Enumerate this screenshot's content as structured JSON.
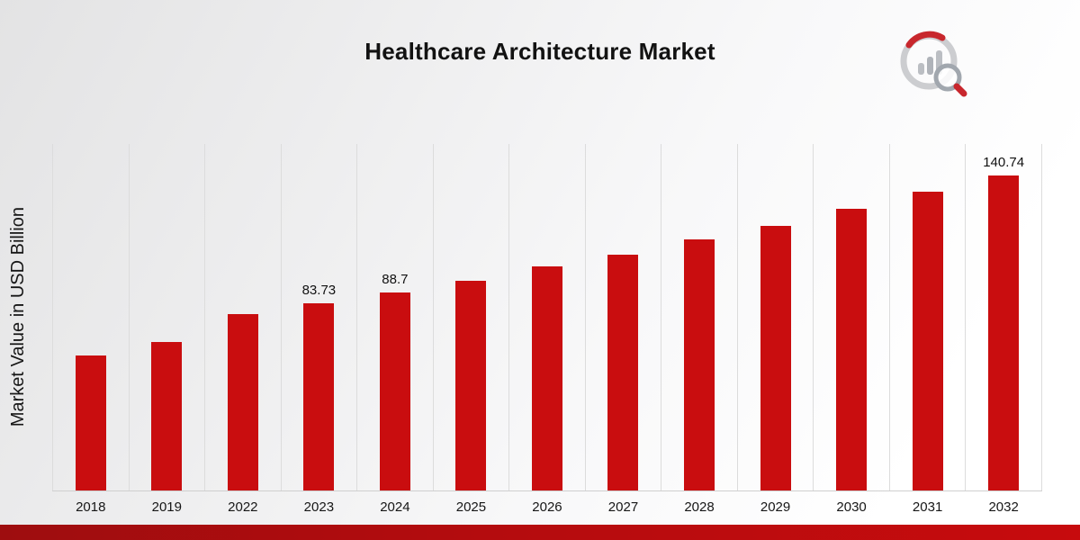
{
  "page": {
    "title": "Healthcare Architecture Market",
    "ylabel": "Market Value in USD Billion"
  },
  "branding": {
    "logo_icon": "market-research-chart-magnifier-logo",
    "accent_color": "#b40c0e"
  },
  "chart_data": {
    "type": "bar",
    "title": "Healthcare Architecture Market",
    "xlabel": "",
    "ylabel": "Market Value in USD Billion",
    "ylim": [
      0,
      155
    ],
    "grid": "vertical-only",
    "legend": "none",
    "bar_color": "#c90d0f",
    "categories": [
      "2018",
      "2019",
      "2022",
      "2023",
      "2024",
      "2025",
      "2026",
      "2027",
      "2028",
      "2029",
      "2030",
      "2031",
      "2032"
    ],
    "values": [
      60.5,
      66.4,
      78.9,
      83.73,
      88.7,
      93.8,
      100.2,
      105.5,
      112.3,
      118.4,
      126.0,
      133.7,
      140.74
    ],
    "data_labels": [
      "",
      "",
      "",
      "83.73",
      "88.7",
      "",
      "",
      "",
      "",
      "",
      "",
      "",
      "140.74"
    ]
  }
}
